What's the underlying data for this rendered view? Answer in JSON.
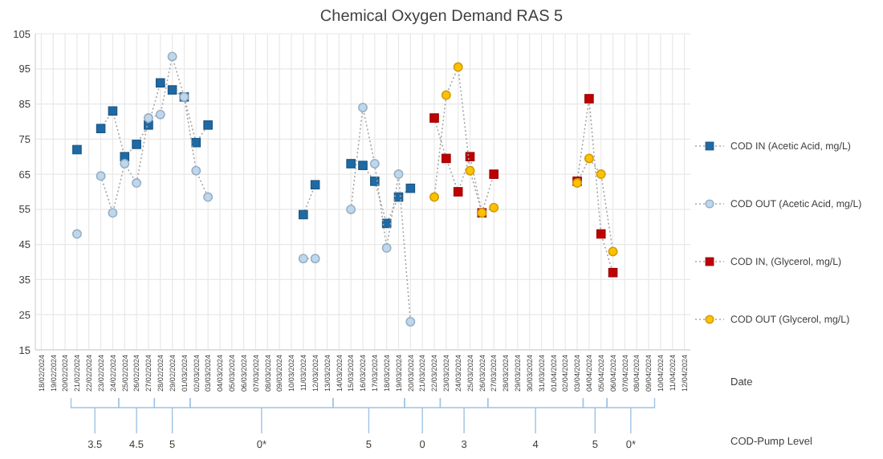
{
  "chart_data": {
    "type": "line",
    "title": "Chemical Oxygen Demand RAS 5",
    "xlabel": "Date",
    "annotations": [
      "COD-Pump Level",
      "3.5",
      "4.5",
      "5",
      "0*",
      "5",
      "0",
      "3",
      "4",
      "5",
      "0*"
    ],
    "x": [
      "2024-02-21",
      "2024-02-22",
      "2024-02-23",
      "2024-02-24",
      "2024-02-25",
      "2024-02-26",
      "2024-02-27",
      "2024-02-28",
      "2024-02-29",
      "2024-03-01",
      "2024-03-02",
      "2024-03-03",
      "2024-03-04",
      "2024-03-05",
      "2024-03-06",
      "2024-03-07",
      "2024-03-08",
      "2024-03-09",
      "2024-03-10",
      "2024-03-11",
      "2024-03-12",
      "2024-03-13",
      "2024-03-14",
      "2024-03-15",
      "2024-03-16",
      "2024-03-17",
      "2024-03-18",
      "2024-03-19",
      "2024-03-20",
      "2024-03-21",
      "2024-03-22",
      "2024-03-23",
      "2024-03-24",
      "2024-03-25",
      "2024-03-26",
      "2024-03-27",
      "2024-03-28",
      "2024-03-29",
      "2024-03-30",
      "2024-03-31",
      "2024-04-01",
      "2024-04-02",
      "2024-04-03",
      "2024-04-04",
      "2024-04-05",
      "2024-04-06"
    ],
    "series": [
      {
        "name": "COD IN (Acetic Acid, mg/L)",
        "color": "#1f6aa5",
        "marker": "square",
        "values": [
          72,
          null,
          78,
          83,
          70,
          73.5,
          79,
          91,
          89,
          87,
          74,
          79,
          null,
          null,
          null,
          null,
          null,
          null,
          null,
          53.5,
          62,
          null,
          null,
          68,
          67.5,
          63,
          51,
          58.5,
          61,
          null,
          null,
          null,
          null,
          null,
          null,
          null,
          null,
          null,
          null,
          null,
          null,
          null,
          null,
          null,
          null,
          null
        ]
      },
      {
        "name": "COD OUT (Acetic Acid, mg/L)",
        "color": "#bdd7ee",
        "marker": "circle",
        "values": [
          48,
          null,
          64.5,
          54,
          68,
          62.5,
          81,
          82,
          98.5,
          87,
          66,
          58.5,
          null,
          null,
          null,
          null,
          null,
          null,
          null,
          41,
          41,
          null,
          null,
          55,
          84,
          68,
          44,
          65,
          23,
          null,
          null,
          null,
          null,
          null,
          null,
          null,
          null,
          null,
          null,
          null,
          null,
          null,
          null,
          null,
          null,
          null
        ]
      },
      {
        "name": "COD IN, (Glycerol, mg/L)",
        "color": "#c00000",
        "marker": "square",
        "values": [
          null,
          null,
          null,
          null,
          null,
          null,
          null,
          null,
          null,
          null,
          null,
          null,
          null,
          null,
          null,
          null,
          null,
          null,
          null,
          null,
          null,
          null,
          null,
          null,
          null,
          null,
          null,
          null,
          null,
          null,
          81,
          69.5,
          60,
          70,
          54,
          65,
          null,
          null,
          null,
          null,
          null,
          null,
          63,
          86.5,
          48,
          37
        ]
      },
      {
        "name": "COD OUT (Glycerol, mg/L)",
        "color": "#ffc000",
        "marker": "circle",
        "values": [
          null,
          null,
          null,
          null,
          null,
          null,
          null,
          null,
          null,
          null,
          null,
          null,
          null,
          null,
          null,
          null,
          null,
          null,
          null,
          null,
          null,
          null,
          null,
          null,
          null,
          null,
          null,
          null,
          null,
          null,
          58.5,
          87.5,
          95.5,
          66,
          54,
          55.5,
          null,
          null,
          null,
          null,
          null,
          null,
          62.5,
          69.5,
          65,
          43
        ]
      }
    ],
    "xlim": [
      "2024-02-17T12:00",
      "2024-04-12T12:00"
    ],
    "xticks": [
      {
        "value": "2024-02-18",
        "label": "18/02/2024"
      },
      {
        "value": "2024-02-19",
        "label": "19/02/2024"
      },
      {
        "value": "2024-02-20",
        "label": "20/02/2024"
      },
      {
        "value": "2024-02-21",
        "label": "21/02/2024"
      },
      {
        "value": "2024-02-22",
        "label": "22/02/2024"
      },
      {
        "value": "2024-02-23",
        "label": "23/02/2024"
      },
      {
        "value": "2024-02-24",
        "label": "24/02/2024"
      },
      {
        "value": "2024-02-25",
        "label": "25/02/2024"
      },
      {
        "value": "2024-02-26",
        "label": "26/02/2024"
      },
      {
        "value": "2024-02-27",
        "label": "27/02/2024"
      },
      {
        "value": "2024-02-28",
        "label": "28/02/2024"
      },
      {
        "value": "2024-02-29",
        "label": "29/02/2024"
      },
      {
        "value": "2024-03-01",
        "label": "01/03/2024"
      },
      {
        "value": "2024-03-02",
        "label": "02/03/2024"
      },
      {
        "value": "2024-03-03",
        "label": "03/03/2024"
      },
      {
        "value": "2024-03-04",
        "label": "04/03/2024"
      },
      {
        "value": "2024-03-05",
        "label": "05/03/2024"
      },
      {
        "value": "2024-03-06",
        "label": "06/03/2024"
      },
      {
        "value": "2024-03-07",
        "label": "07/03/2024"
      },
      {
        "value": "2024-03-08",
        "label": "08/03/2024"
      },
      {
        "value": "2024-03-09",
        "label": "09/03/2024"
      },
      {
        "value": "2024-03-10",
        "label": "10/03/2024"
      },
      {
        "value": "2024-03-11",
        "label": "11/03/2024"
      },
      {
        "value": "2024-03-12",
        "label": "12/03/2024"
      },
      {
        "value": "2024-03-13",
        "label": "13/03/2024"
      },
      {
        "value": "2024-03-14",
        "label": "14/03/2024"
      },
      {
        "value": "2024-03-15",
        "label": "15/03/2024"
      },
      {
        "value": "2024-03-16",
        "label": "16/03/2024"
      },
      {
        "value": "2024-03-17",
        "label": "17/03/2024"
      },
      {
        "value": "2024-03-18",
        "label": "18/03/2024"
      },
      {
        "value": "2024-03-19",
        "label": "19/03/2024"
      },
      {
        "value": "2024-03-20",
        "label": "20/03/2024"
      },
      {
        "value": "2024-03-21",
        "label": "21/03/2024"
      },
      {
        "value": "2024-03-22",
        "label": "22/03/2024"
      },
      {
        "value": "2024-03-23",
        "label": "23/03/2024"
      },
      {
        "value": "2024-03-24",
        "label": "24/03/2024"
      },
      {
        "value": "2024-03-25",
        "label": "25/03/2024"
      },
      {
        "value": "2024-03-26",
        "label": "26/03/2024"
      },
      {
        "value": "2024-03-27",
        "label": "27/03/2024"
      },
      {
        "value": "2024-03-28",
        "label": "28/03/2024"
      },
      {
        "value": "2024-03-29",
        "label": "29/03/2024"
      },
      {
        "value": "2024-03-30",
        "label": "30/03/2024"
      },
      {
        "value": "2024-03-31",
        "label": "31/03/2024"
      },
      {
        "value": "2024-04-01",
        "label": "01/04/2024"
      },
      {
        "value": "2024-04-02",
        "label": "02/04/2024"
      },
      {
        "value": "2024-04-03",
        "label": "03/04/2024"
      },
      {
        "value": "2024-04-04",
        "label": "04/04/2024"
      },
      {
        "value": "2024-04-05",
        "label": "05/04/2024"
      },
      {
        "value": "2024-04-06",
        "label": "06/04/2024"
      },
      {
        "value": "2024-04-07",
        "label": "07/04/2024"
      },
      {
        "value": "2024-04-08",
        "label": "08/04/2024"
      },
      {
        "value": "2024-04-09",
        "label": "09/04/2024"
      },
      {
        "value": "2024-04-10",
        "label": "10/04/2024"
      },
      {
        "value": "2024-04-11",
        "label": "11/04/2024"
      },
      {
        "value": "2024-04-12",
        "label": "12/04/2024"
      }
    ],
    "ylim": [
      15,
      105
    ],
    "yticks": [
      15,
      25,
      35,
      45,
      55,
      65,
      75,
      85,
      95,
      105
    ],
    "grid": true,
    "legend": "right",
    "line_style": "dotted"
  }
}
